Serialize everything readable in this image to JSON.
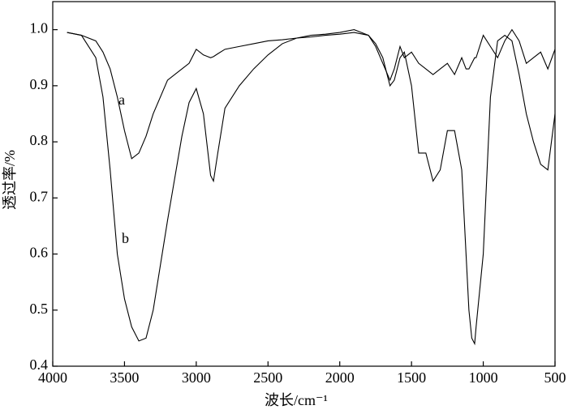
{
  "chart_data": {
    "type": "line",
    "x_label": "波长/cm⁻¹",
    "y_label": "透过率/%",
    "annotations": [
      "a",
      "b"
    ],
    "xlim": [
      4000,
      500
    ],
    "ylim": [
      0.4,
      1.05
    ],
    "xticks": [
      4000,
      3500,
      3000,
      2500,
      2000,
      1500,
      1000,
      500
    ],
    "yticks": [
      0.4,
      0.5,
      0.6,
      0.7,
      0.8,
      0.9,
      {
        "value": 1,
        "label": "1.0"
      }
    ],
    "x": [
      3900,
      3800,
      3700,
      3650,
      3600,
      3550,
      3500,
      3450,
      3400,
      3350,
      3300,
      3200,
      3100,
      3050,
      3000,
      2950,
      2900,
      2880,
      2850,
      2800,
      2700,
      2600,
      2500,
      2400,
      2300,
      2200,
      2100,
      2000,
      1900,
      1800,
      1750,
      1700,
      1650,
      1620,
      1600,
      1580,
      1550,
      1500,
      1450,
      1400,
      1350,
      1300,
      1250,
      1200,
      1150,
      1120,
      1100,
      1080,
      1060,
      1050,
      1000,
      950,
      900,
      850,
      800,
      750,
      700,
      650,
      600,
      550,
      500
    ],
    "series": [
      {
        "name": "a",
        "color": "#000000",
        "values": [
          0.995,
          0.99,
          0.98,
          0.96,
          0.93,
          0.88,
          0.82,
          0.77,
          0.78,
          0.81,
          0.85,
          0.91,
          0.93,
          0.94,
          0.965,
          0.955,
          0.95,
          0.952,
          0.957,
          0.965,
          0.97,
          0.975,
          0.98,
          0.982,
          0.985,
          0.987,
          0.99,
          0.992,
          0.995,
          0.99,
          0.97,
          0.94,
          0.91,
          0.93,
          0.95,
          0.97,
          0.95,
          0.96,
          0.94,
          0.93,
          0.92,
          0.93,
          0.94,
          0.92,
          0.95,
          0.93,
          0.93,
          0.94,
          0.95,
          0.95,
          0.99,
          0.97,
          0.95,
          0.98,
          1.0,
          0.98,
          0.94,
          0.95,
          0.96,
          0.93,
          0.965
        ]
      },
      {
        "name": "b",
        "color": "#000000",
        "values": [
          0.995,
          0.99,
          0.95,
          0.88,
          0.75,
          0.6,
          0.52,
          0.47,
          0.445,
          0.45,
          0.5,
          0.66,
          0.81,
          0.87,
          0.895,
          0.85,
          0.74,
          0.73,
          0.78,
          0.86,
          0.9,
          0.93,
          0.955,
          0.975,
          0.985,
          0.99,
          0.992,
          0.995,
          1.0,
          0.99,
          0.975,
          0.95,
          0.9,
          0.91,
          0.93,
          0.95,
          0.96,
          0.9,
          0.78,
          0.78,
          0.73,
          0.75,
          0.82,
          0.82,
          0.75,
          0.6,
          0.5,
          0.45,
          0.44,
          0.47,
          0.6,
          0.88,
          0.98,
          0.99,
          0.98,
          0.92,
          0.85,
          0.8,
          0.76,
          0.75,
          0.85
        ]
      }
    ]
  }
}
